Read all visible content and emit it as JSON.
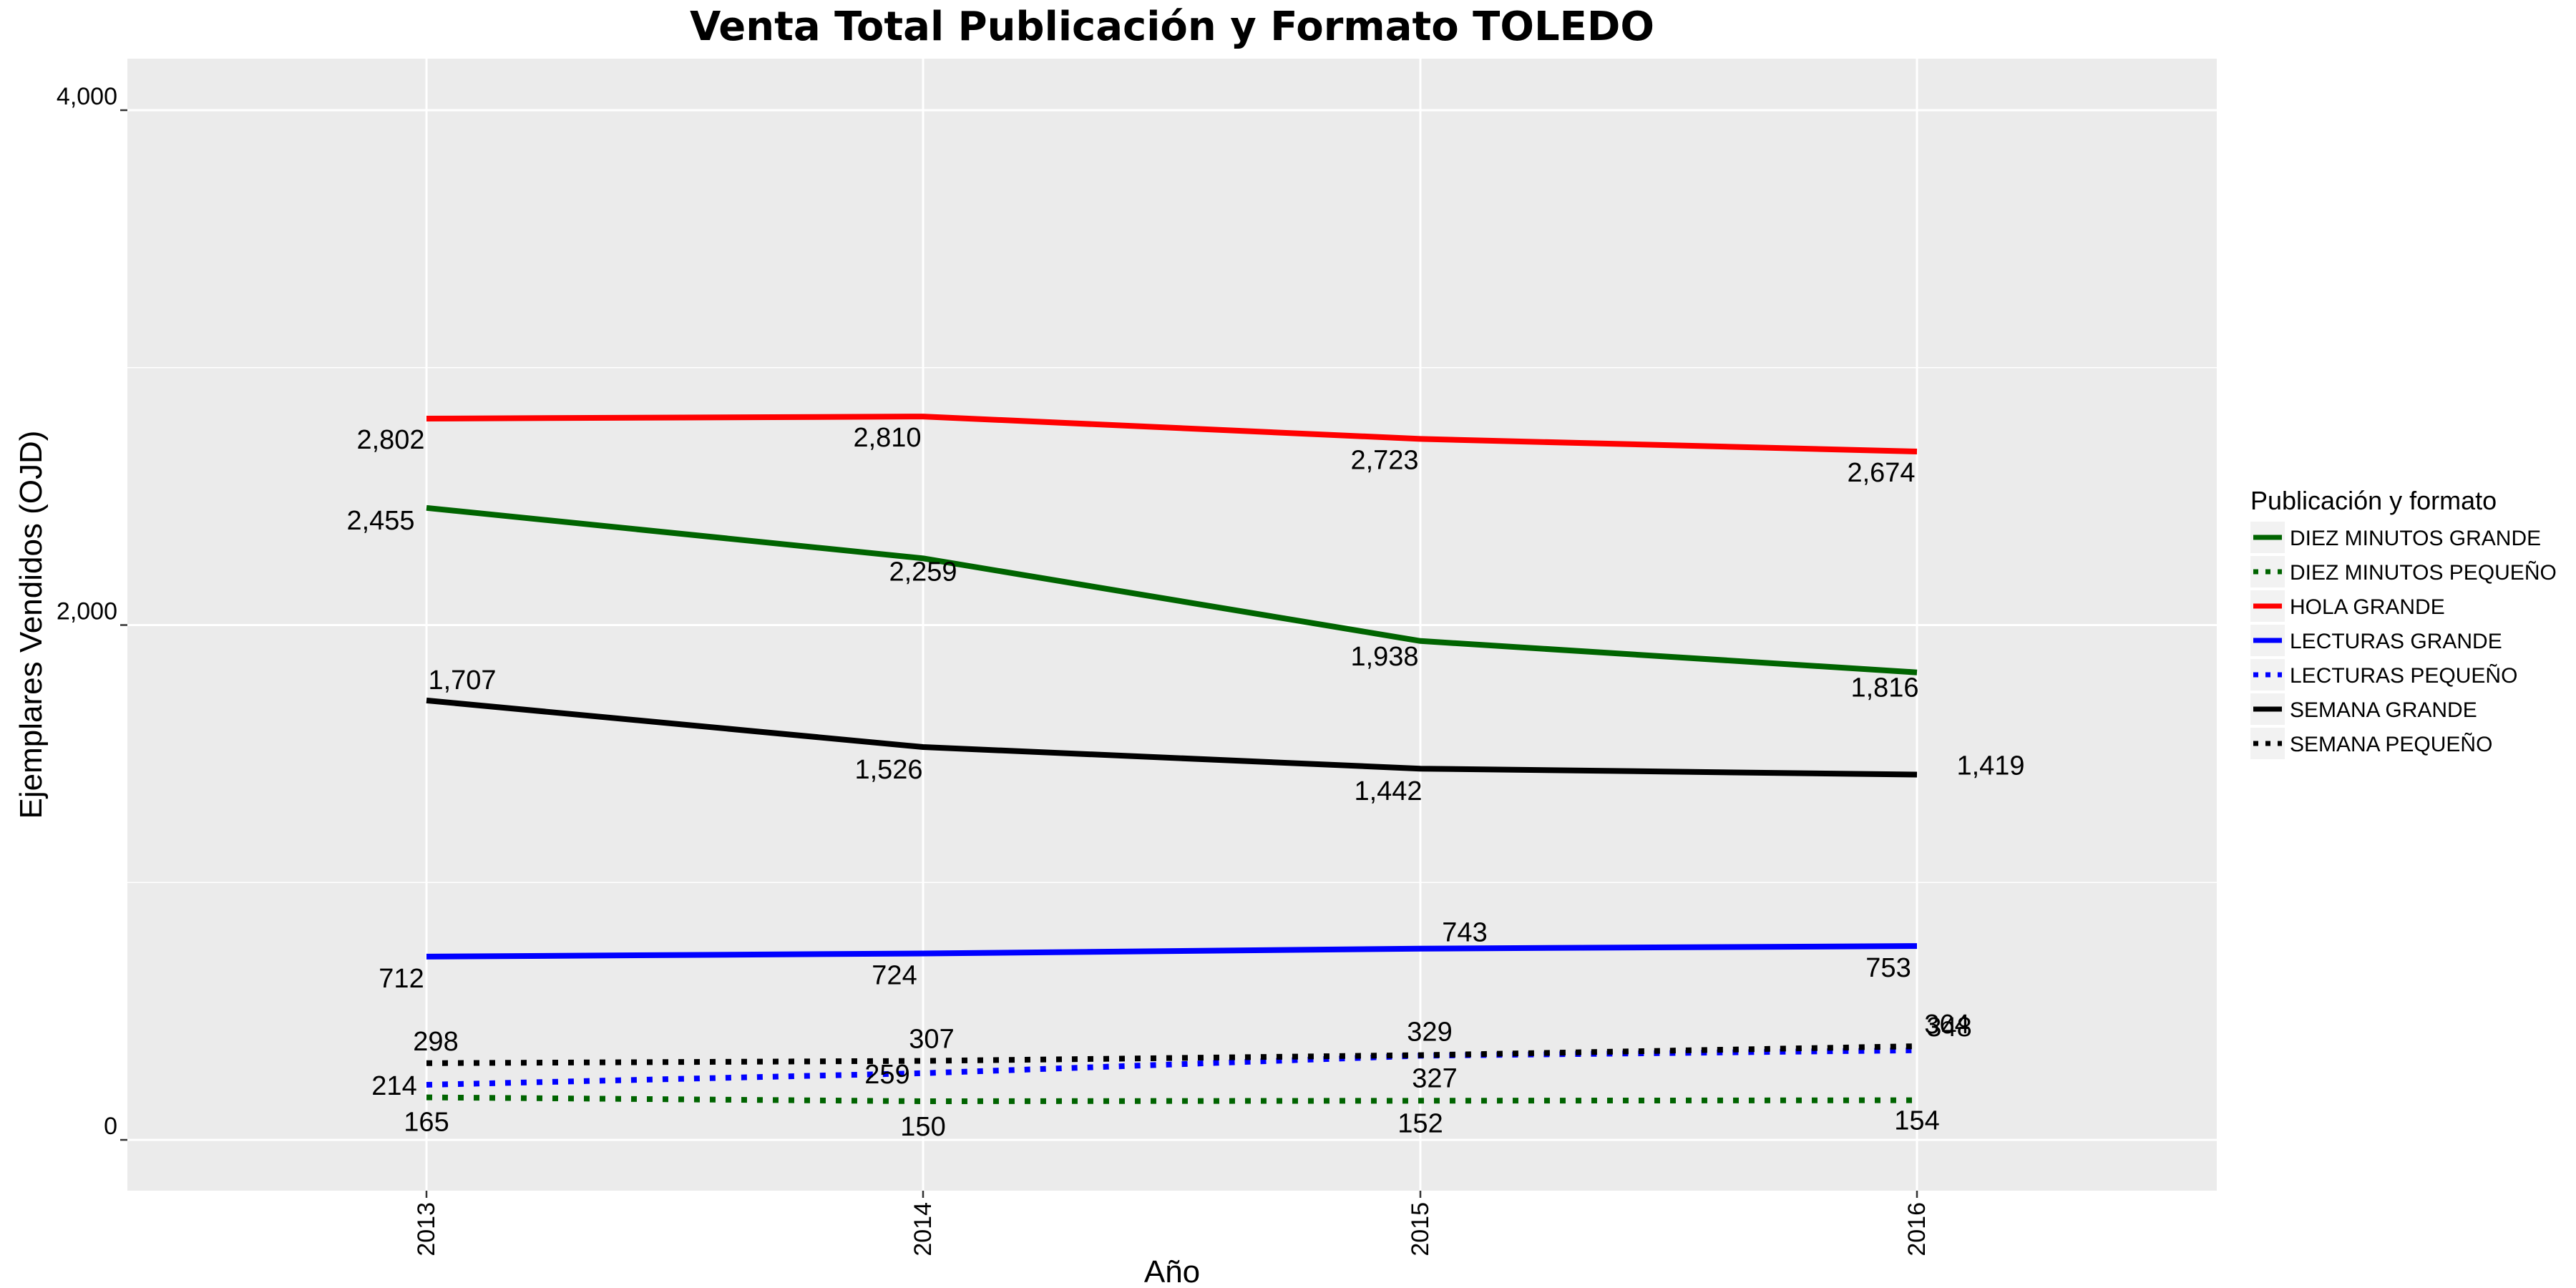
{
  "chart_data": {
    "type": "line",
    "title": "Venta Total Publicación y Formato  TOLEDO",
    "xlabel": "Año",
    "ylabel": "Ejemplares Vendidos (OJD)",
    "x": [
      "2013",
      "2014",
      "2015",
      "2016"
    ],
    "ylim": [
      -200,
      4200
    ],
    "yticks": [
      0,
      2000,
      4000
    ],
    "ytick_labels": [
      "0",
      "2,000",
      "4,000"
    ],
    "grid": true,
    "legend": {
      "title": "Publicación y formato",
      "position": "right"
    },
    "series": [
      {
        "name": "DIEZ MINUTOS GRANDE",
        "values": [
          2455,
          2259,
          1938,
          1816
        ],
        "labels": [
          "2,455",
          "2,259",
          "1,938",
          "1,816"
        ],
        "color": "#006400",
        "dash": "solid"
      },
      {
        "name": "DIEZ MINUTOS PEQUEÑO",
        "values": [
          165,
          150,
          152,
          154
        ],
        "labels": [
          "165",
          "150",
          "152",
          "154"
        ],
        "color": "#006400",
        "dash": "dotted"
      },
      {
        "name": "HOLA GRANDE",
        "values": [
          2802,
          2810,
          2723,
          2674
        ],
        "labels": [
          "2,802",
          "2,810",
          "2,723",
          "2,674"
        ],
        "color": "#ff0000",
        "dash": "solid"
      },
      {
        "name": "LECTURAS GRANDE",
        "values": [
          712,
          724,
          743,
          753
        ],
        "labels": [
          "712",
          "724",
          "743",
          "753"
        ],
        "color": "#0000ff",
        "dash": "solid"
      },
      {
        "name": "LECTURAS PEQUEÑO",
        "values": [
          214,
          259,
          327,
          348
        ],
        "labels": [
          "214",
          "259",
          "327",
          "348"
        ],
        "color": "#0000ff",
        "dash": "dotted"
      },
      {
        "name": "SEMANA GRANDE",
        "values": [
          1707,
          1526,
          1442,
          1419
        ],
        "labels": [
          "1,707",
          "1,526",
          "1,442",
          "1,419"
        ],
        "color": "#000000",
        "dash": "solid"
      },
      {
        "name": "SEMANA PEQUEÑO",
        "values": [
          298,
          307,
          329,
          364
        ],
        "labels": [
          "298",
          "307",
          "329",
          "364"
        ],
        "color": "#000000",
        "dash": "dotted"
      }
    ]
  }
}
